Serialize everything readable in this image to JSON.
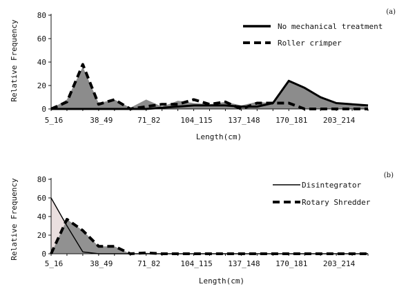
{
  "chart_data": [
    {
      "type": "area",
      "panel_label": "(a)",
      "xlabel": "Length(cm)",
      "ylabel": "Relative Frequency",
      "ylim": [
        0,
        80
      ],
      "yticks": [
        0,
        20,
        40,
        60,
        80
      ],
      "x": [
        1,
        2,
        3,
        4,
        5,
        6,
        7,
        8,
        9,
        10,
        11,
        12,
        13,
        14,
        15,
        16,
        17,
        18,
        19,
        20,
        21
      ],
      "xtick_labels": [
        {
          "x": 1,
          "label": "5_16"
        },
        {
          "x": 4,
          "label": "38_49"
        },
        {
          "x": 7,
          "label": "71_82"
        },
        {
          "x": 10,
          "label": "104_115"
        },
        {
          "x": 13,
          "label": "137_148"
        },
        {
          "x": 16,
          "label": "170_181"
        },
        {
          "x": 19,
          "label": "203_214"
        }
      ],
      "series": [
        {
          "name": "No mechanical treatment",
          "style": "solid",
          "fill": "#8c8c8c",
          "values": [
            0,
            0,
            0,
            0,
            0,
            0,
            0,
            1,
            2,
            3,
            3,
            3,
            2,
            2,
            5,
            24,
            18,
            10,
            5,
            4,
            3
          ]
        },
        {
          "name": "Roller crimper",
          "style": "dashed",
          "fill": "#8c8c8c",
          "values": [
            0,
            6,
            38,
            4,
            8,
            0,
            2,
            4,
            4,
            8,
            4,
            6,
            0,
            5,
            5,
            5,
            0,
            0,
            0,
            0,
            0
          ]
        }
      ],
      "area_fill": {
        "values": [
          0,
          8,
          36,
          5,
          8,
          1,
          8,
          2,
          7,
          5,
          4,
          6,
          3,
          6,
          5,
          24,
          18,
          11,
          5,
          4,
          3
        ]
      }
    },
    {
      "type": "area",
      "panel_label": "(b)",
      "xlabel": "Length(cm)",
      "ylabel": "Relative Frequency",
      "ylim": [
        0,
        80
      ],
      "yticks": [
        0,
        20,
        40,
        60,
        80
      ],
      "x": [
        1,
        2,
        3,
        4,
        5,
        6,
        7,
        8,
        9,
        10,
        11,
        12,
        13,
        14,
        15,
        16,
        17,
        18,
        19,
        20,
        21
      ],
      "xtick_labels": [
        {
          "x": 1,
          "label": "5_16"
        },
        {
          "x": 4,
          "label": "38_49"
        },
        {
          "x": 7,
          "label": "71_82"
        },
        {
          "x": 10,
          "label": "104_115"
        },
        {
          "x": 13,
          "label": "137_148"
        },
        {
          "x": 16,
          "label": "170_181"
        },
        {
          "x": 19,
          "label": "203_214"
        }
      ],
      "series": [
        {
          "name": "Disintegrator",
          "style": "solid",
          "fill": "#e8dcdc",
          "values": [
            60,
            30,
            2,
            0,
            0,
            0,
            0,
            0,
            0,
            0,
            0,
            0,
            0,
            0,
            0,
            0,
            0,
            0,
            0,
            0,
            0
          ]
        },
        {
          "name": "Rotary Shredder",
          "style": "dashed",
          "fill": "#8c8c8c",
          "values": [
            0,
            37,
            25,
            8,
            8,
            0,
            1,
            0,
            0,
            0,
            0,
            0,
            0,
            0,
            0,
            0,
            0,
            0,
            0,
            0,
            0
          ]
        }
      ]
    }
  ]
}
